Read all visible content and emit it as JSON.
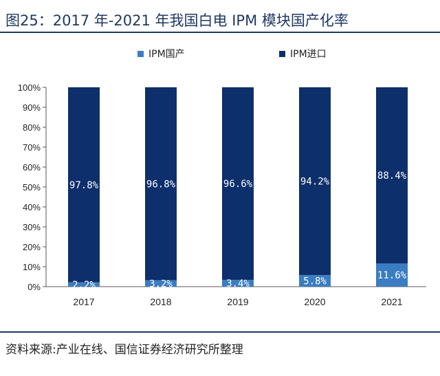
{
  "title": "图25：2017 年-2021 年我国白电 IPM 模块国产化率",
  "source": "资料来源:产业在线、国信证券经济研究所整理",
  "chart_data": {
    "type": "bar",
    "stacked": true,
    "categories": [
      "2017",
      "2018",
      "2019",
      "2020",
      "2021"
    ],
    "series": [
      {
        "name": "IPM国产",
        "color": "#3a7dc2",
        "values": [
          2.2,
          3.2,
          3.4,
          5.8,
          11.6
        ],
        "labels": [
          "2.2%",
          "3.2%",
          "3.4%",
          "5.8%",
          "11.6%"
        ]
      },
      {
        "name": "IPM进口",
        "color": "#0d2f6b",
        "values": [
          97.8,
          96.8,
          96.6,
          94.2,
          88.4
        ],
        "labels": [
          "97.8%",
          "96.8%",
          "96.6%",
          "94.2%",
          "88.4%"
        ]
      }
    ],
    "ylim": [
      0,
      100
    ],
    "yticks": [
      "0%",
      "10%",
      "20%",
      "30%",
      "40%",
      "50%",
      "60%",
      "70%",
      "80%",
      "90%",
      "100%"
    ],
    "legend": "top-center"
  }
}
